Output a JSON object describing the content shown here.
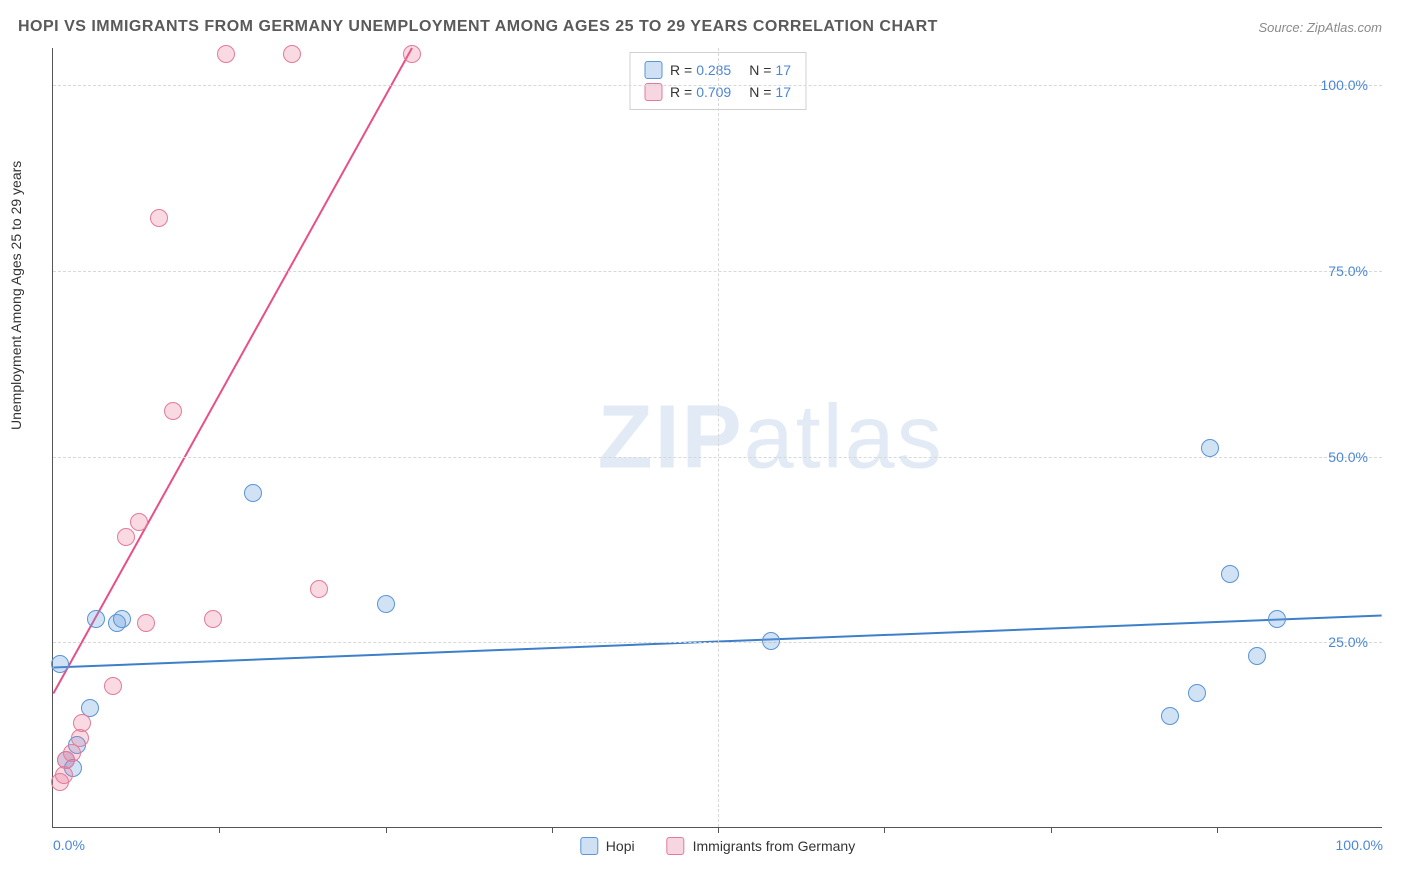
{
  "title": "HOPI VS IMMIGRANTS FROM GERMANY UNEMPLOYMENT AMONG AGES 25 TO 29 YEARS CORRELATION CHART",
  "source": "Source: ZipAtlas.com",
  "ylabel": "Unemployment Among Ages 25 to 29 years",
  "watermark_a": "ZIP",
  "watermark_b": "atlas",
  "chart": {
    "type": "scatter",
    "xlim": [
      0,
      100
    ],
    "ylim": [
      0,
      105
    ],
    "xtick_labels": [
      "0.0%",
      "100.0%"
    ],
    "ytick_labels": [
      "25.0%",
      "50.0%",
      "75.0%",
      "100.0%"
    ],
    "ytick_values": [
      25,
      50,
      75,
      100
    ],
    "minor_x_ticks": [
      12.5,
      25,
      37.5,
      50,
      62.5,
      75,
      87.5
    ],
    "minor_y_ticks": [
      12.5,
      37.5,
      62.5,
      87.5
    ],
    "grid_color": "#d8d8d8",
    "background_color": "#ffffff",
    "axis_color": "#555555",
    "series": [
      {
        "name": "Hopi",
        "color_fill": "rgba(106,160,222,0.30)",
        "color_stroke": "#5a94d6",
        "marker_radius": 9,
        "r": "0.285",
        "n": "17",
        "swatch_fill": "#cfe0f4",
        "swatch_border": "#5a94d6",
        "line_color": "#3d7fc9",
        "line_width": 2,
        "trend": {
          "x1": 0,
          "y1": 21.5,
          "x2": 100,
          "y2": 28.5
        },
        "points": [
          {
            "x": 0.5,
            "y": 22
          },
          {
            "x": 1.5,
            "y": 8
          },
          {
            "x": 2.8,
            "y": 16
          },
          {
            "x": 3.2,
            "y": 28
          },
          {
            "x": 4.8,
            "y": 27.5
          },
          {
            "x": 5.2,
            "y": 28
          },
          {
            "x": 15,
            "y": 45
          },
          {
            "x": 25,
            "y": 30
          },
          {
            "x": 54,
            "y": 25
          },
          {
            "x": 84,
            "y": 15
          },
          {
            "x": 86,
            "y": 18
          },
          {
            "x": 87,
            "y": 51
          },
          {
            "x": 88.5,
            "y": 34
          },
          {
            "x": 90.5,
            "y": 23
          },
          {
            "x": 92,
            "y": 28
          },
          {
            "x": 1.8,
            "y": 11
          },
          {
            "x": 1.0,
            "y": 9
          }
        ]
      },
      {
        "name": "Immigrants from Germany",
        "color_fill": "rgba(235,120,150,0.28)",
        "color_stroke": "#e47a9a",
        "marker_radius": 9,
        "r": "0.709",
        "n": "17",
        "swatch_fill": "#f6d6e0",
        "swatch_border": "#e47a9a",
        "line_color": "#e84f86",
        "line_width": 2,
        "trend": {
          "x1": 0,
          "y1": 18,
          "x2": 27,
          "y2": 105
        },
        "points": [
          {
            "x": 0.5,
            "y": 6
          },
          {
            "x": 1.0,
            "y": 9
          },
          {
            "x": 1.4,
            "y": 10
          },
          {
            "x": 2.0,
            "y": 12
          },
          {
            "x": 2.2,
            "y": 14
          },
          {
            "x": 4.5,
            "y": 19
          },
          {
            "x": 5.5,
            "y": 39
          },
          {
            "x": 6.5,
            "y": 41
          },
          {
            "x": 7.0,
            "y": 27.5
          },
          {
            "x": 8.0,
            "y": 82
          },
          {
            "x": 9.0,
            "y": 56
          },
          {
            "x": 12,
            "y": 28
          },
          {
            "x": 13,
            "y": 104
          },
          {
            "x": 18,
            "y": 104
          },
          {
            "x": 27,
            "y": 104
          },
          {
            "x": 20,
            "y": 32
          },
          {
            "x": 0.8,
            "y": 7
          }
        ]
      }
    ]
  },
  "legend_top": {
    "r_label": "R =",
    "n_label": "N ="
  },
  "legend_bottom": [
    {
      "swatch_fill": "#cfe0f4",
      "swatch_border": "#5a94d6",
      "label": "Hopi"
    },
    {
      "swatch_fill": "#f6d6e0",
      "swatch_border": "#e47a9a",
      "label": "Immigrants from Germany"
    }
  ]
}
